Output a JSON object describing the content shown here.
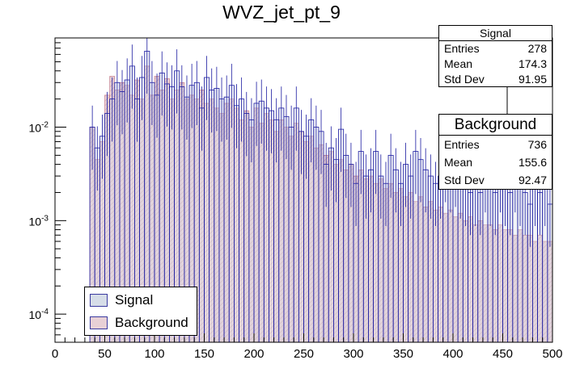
{
  "chart_data": {
    "type": "bar",
    "title": "WVZ_jet_pt_9",
    "xlabel": "",
    "ylabel": "",
    "xlim": [
      0,
      500
    ],
    "ylim": [
      5e-05,
      0.09
    ],
    "y_scale": "log",
    "bin_width": 5,
    "x_ticks": [
      "0",
      "50",
      "100",
      "150",
      "200",
      "250",
      "300",
      "350",
      "400",
      "450",
      "500"
    ],
    "y_ticks": [
      {
        "value": 0.0001,
        "label": "10",
        "exp": "-4"
      },
      {
        "value": 0.001,
        "label": "10",
        "exp": "-3"
      },
      {
        "value": 0.01,
        "label": "10",
        "exp": "-2"
      }
    ],
    "series": [
      {
        "name": "Background",
        "color": "#e8d0d6",
        "edge": "#c07080",
        "bins": [
          [
            35,
            0.01
          ],
          [
            40,
            0.0045
          ],
          [
            45,
            0.007
          ],
          [
            50,
            0.022
          ],
          [
            55,
            0.035
          ],
          [
            60,
            0.025
          ],
          [
            65,
            0.03
          ],
          [
            70,
            0.028
          ],
          [
            75,
            0.022
          ],
          [
            80,
            0.032
          ],
          [
            85,
            0.02
          ],
          [
            90,
            0.045
          ],
          [
            95,
            0.022
          ],
          [
            100,
            0.035
          ],
          [
            105,
            0.025
          ],
          [
            110,
            0.033
          ],
          [
            115,
            0.02
          ],
          [
            120,
            0.025
          ],
          [
            125,
            0.03
          ],
          [
            130,
            0.02
          ],
          [
            135,
            0.022
          ],
          [
            140,
            0.02
          ],
          [
            145,
            0.025
          ],
          [
            150,
            0.018
          ],
          [
            155,
            0.02
          ],
          [
            160,
            0.016
          ],
          [
            165,
            0.014
          ],
          [
            170,
            0.018
          ],
          [
            175,
            0.02
          ],
          [
            180,
            0.016
          ],
          [
            185,
            0.012
          ],
          [
            190,
            0.015
          ],
          [
            195,
            0.01
          ],
          [
            200,
            0.016
          ],
          [
            205,
            0.011
          ],
          [
            210,
            0.014
          ],
          [
            215,
            0.012
          ],
          [
            220,
            0.009
          ],
          [
            225,
            0.012
          ],
          [
            230,
            0.01
          ],
          [
            235,
            0.008
          ],
          [
            240,
            0.011
          ],
          [
            245,
            0.009
          ],
          [
            250,
            0.007
          ],
          [
            255,
            0.008
          ],
          [
            260,
            0.006
          ],
          [
            265,
            0.0065
          ],
          [
            270,
            0.005
          ],
          [
            275,
            0.0055
          ],
          [
            280,
            0.004
          ],
          [
            285,
            0.0045
          ],
          [
            290,
            0.0035
          ],
          [
            295,
            0.004
          ],
          [
            300,
            0.003
          ],
          [
            305,
            0.0035
          ],
          [
            310,
            0.0028
          ],
          [
            315,
            0.003
          ],
          [
            320,
            0.0025
          ],
          [
            325,
            0.0028
          ],
          [
            330,
            0.0022
          ],
          [
            335,
            0.0025
          ],
          [
            340,
            0.002
          ],
          [
            345,
            0.0022
          ],
          [
            350,
            0.0018
          ],
          [
            355,
            0.002
          ],
          [
            360,
            0.0016
          ],
          [
            365,
            0.0018
          ],
          [
            370,
            0.0014
          ],
          [
            375,
            0.0016
          ],
          [
            380,
            0.0013
          ],
          [
            385,
            0.0014
          ],
          [
            390,
            0.0012
          ],
          [
            395,
            0.0013
          ],
          [
            400,
            0.0011
          ],
          [
            405,
            0.0012
          ],
          [
            410,
            0.001
          ],
          [
            415,
            0.0011
          ],
          [
            420,
            0.0009
          ],
          [
            425,
            0.001
          ],
          [
            430,
            0.0009
          ],
          [
            435,
            0.0009
          ],
          [
            440,
            0.0008
          ],
          [
            445,
            0.0009
          ],
          [
            450,
            0.0008
          ],
          [
            455,
            0.0008
          ],
          [
            460,
            0.0007
          ],
          [
            465,
            0.0008
          ],
          [
            470,
            0.0007
          ],
          [
            475,
            0.0007
          ],
          [
            480,
            0.0006
          ],
          [
            485,
            0.0007
          ],
          [
            490,
            0.0006
          ],
          [
            495,
            0.0006
          ]
        ]
      },
      {
        "name": "Signal",
        "color": "#d6dde8",
        "edge": "#1a1aa0",
        "bins": [
          [
            35,
            0.01
          ],
          [
            40,
            0.006
          ],
          [
            45,
            0.008
          ],
          [
            50,
            0.014
          ],
          [
            55,
            0.02
          ],
          [
            60,
            0.03
          ],
          [
            65,
            0.024
          ],
          [
            70,
            0.032
          ],
          [
            75,
            0.045
          ],
          [
            80,
            0.02
          ],
          [
            85,
            0.034
          ],
          [
            90,
            0.065
          ],
          [
            95,
            0.03
          ],
          [
            100,
            0.022
          ],
          [
            105,
            0.038
          ],
          [
            110,
            0.029
          ],
          [
            115,
            0.027
          ],
          [
            120,
            0.04
          ],
          [
            125,
            0.027
          ],
          [
            130,
            0.021
          ],
          [
            135,
            0.028
          ],
          [
            140,
            0.03
          ],
          [
            145,
            0.016
          ],
          [
            150,
            0.034
          ],
          [
            155,
            0.025
          ],
          [
            160,
            0.026
          ],
          [
            165,
            0.02
          ],
          [
            170,
            0.021
          ],
          [
            175,
            0.028
          ],
          [
            180,
            0.017
          ],
          [
            185,
            0.02
          ],
          [
            190,
            0.014
          ],
          [
            195,
            0.012
          ],
          [
            200,
            0.018
          ],
          [
            205,
            0.019
          ],
          [
            210,
            0.016
          ],
          [
            215,
            0.015
          ],
          [
            220,
            0.012
          ],
          [
            225,
            0.016
          ],
          [
            230,
            0.013
          ],
          [
            235,
            0.01
          ],
          [
            240,
            0.016
          ],
          [
            245,
            0.009
          ],
          [
            250,
            0.008
          ],
          [
            255,
            0.012
          ],
          [
            260,
            0.01
          ],
          [
            265,
            0.009
          ],
          [
            270,
            0.004
          ],
          [
            275,
            0.006
          ],
          [
            280,
            0.0045
          ],
          [
            285,
            0.0095
          ],
          [
            290,
            0.005
          ],
          [
            295,
            0.004
          ],
          [
            300,
            0.0025
          ],
          [
            305,
            0.0055
          ],
          [
            310,
            0.003
          ],
          [
            315,
            0.0035
          ],
          [
            320,
            0.0055
          ],
          [
            325,
            0.003
          ],
          [
            330,
            0.0025
          ],
          [
            335,
            0.005
          ],
          [
            340,
            0.0035
          ],
          [
            345,
            0.0025
          ],
          [
            350,
            0.004
          ],
          [
            355,
            0.003
          ],
          [
            360,
            0.0055
          ],
          [
            365,
            0.0045
          ],
          [
            370,
            0.0035
          ],
          [
            375,
            0.003
          ],
          [
            380,
            0.0025
          ],
          [
            385,
            0.003
          ],
          [
            390,
            0.0045
          ],
          [
            395,
            0.0035
          ],
          [
            400,
            0.004
          ],
          [
            405,
            0.003
          ],
          [
            410,
            0.0025
          ],
          [
            415,
            0.002
          ],
          [
            420,
            0.0025
          ],
          [
            425,
            0.002
          ],
          [
            430,
            0.0035
          ],
          [
            435,
            0.0025
          ],
          [
            440,
            0.002
          ],
          [
            445,
            0.0035
          ],
          [
            450,
            0.0025
          ],
          [
            455,
            0.002
          ],
          [
            460,
            0.0035
          ],
          [
            465,
            0.0025
          ],
          [
            470,
            0.002
          ],
          [
            475,
            0.0015
          ],
          [
            480,
            0.0025
          ],
          [
            485,
            0.002
          ],
          [
            490,
            0.0025
          ],
          [
            495,
            0.0015
          ]
        ]
      }
    ],
    "stats": {
      "signal": {
        "title": "Signal",
        "entries_label": "Entries",
        "entries": "278",
        "mean_label": "Mean",
        "mean": "174.3",
        "std_label": "Std Dev",
        "std": "91.95"
      },
      "background": {
        "title": "Background",
        "entries_label": "Entries",
        "entries": "736",
        "mean_label": "Mean",
        "mean": "155.6",
        "std_label": "Std Dev",
        "std": "92.47"
      }
    },
    "legend": [
      {
        "label": "Signal"
      },
      {
        "label": "Background"
      }
    ]
  }
}
